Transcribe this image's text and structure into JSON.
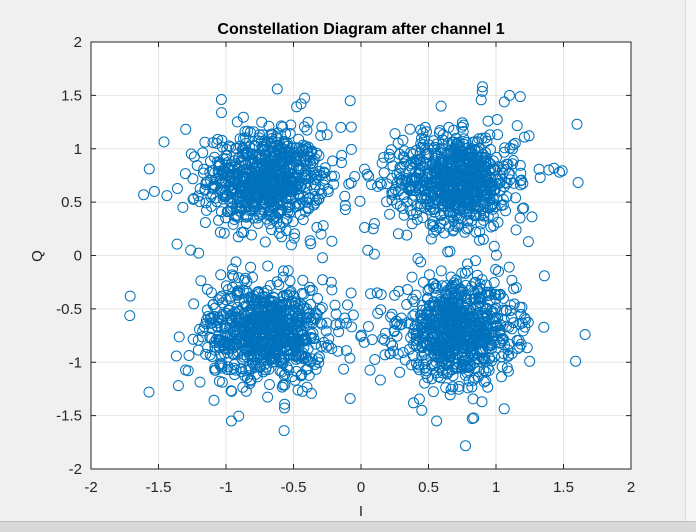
{
  "chart_data": {
    "type": "scatter",
    "title": "Constellation Diagram after channel 1",
    "xlabel": "I",
    "ylabel": "Q",
    "xlim": [
      -2,
      2
    ],
    "ylim": [
      -2,
      2
    ],
    "xticks": [
      -2,
      -1.5,
      -1,
      -0.5,
      0,
      0.5,
      1,
      1.5,
      2
    ],
    "yticks": [
      -2,
      -1.5,
      -1,
      -0.5,
      0,
      0.5,
      1,
      1.5,
      2
    ],
    "xtick_labels": [
      "-2",
      "-1.5",
      "-1",
      "-0.5",
      "0",
      "0.5",
      "1",
      "1.5",
      "2"
    ],
    "ytick_labels": [
      "-2",
      "-1.5",
      "-1",
      "-0.5",
      "0",
      "0.5",
      "1",
      "1.5",
      "2"
    ],
    "grid": true,
    "marker": "open-circle",
    "color": "#0072bd",
    "series": [
      {
        "clusters": [
          {
            "center": [
              -0.71,
              0.71
            ],
            "std": 0.25
          },
          {
            "center": [
              0.71,
              0.71
            ],
            "std": 0.25
          },
          {
            "center": [
              -0.71,
              -0.71
            ],
            "std": 0.25
          },
          {
            "center": [
              0.71,
              -0.71
            ],
            "std": 0.25
          }
        ],
        "points": [
          [
            -1.71,
            -0.38
          ],
          [
            -1.57,
            -1.28
          ],
          [
            -1.61,
            0.57
          ],
          [
            -1.53,
            0.6
          ],
          [
            -0.62,
            1.56
          ],
          [
            -0.57,
            -1.64
          ],
          [
            0.9,
            1.58
          ],
          [
            1.1,
            1.5
          ],
          [
            1.6,
            1.23
          ],
          [
            -0.08,
            1.45
          ],
          [
            1.59,
            -0.99
          ],
          [
            1.66,
            -0.74
          ],
          [
            0.31,
            1.08
          ],
          [
            0.56,
            -1.55
          ],
          [
            0.45,
            -1.45
          ],
          [
            -0.96,
            -1.55
          ],
          [
            -1.12,
            0.78
          ],
          [
            1.47,
            0.78
          ],
          [
            -0.08,
            -1.34
          ],
          [
            1.24,
            0.13
          ],
          [
            -0.15,
            1.2
          ],
          [
            0.1,
            0.3
          ],
          [
            0.12,
            -0.35
          ],
          [
            -0.28,
            0.28
          ],
          [
            -0.22,
            -0.25
          ],
          [
            0.05,
            0.05
          ]
        ]
      }
    ]
  }
}
